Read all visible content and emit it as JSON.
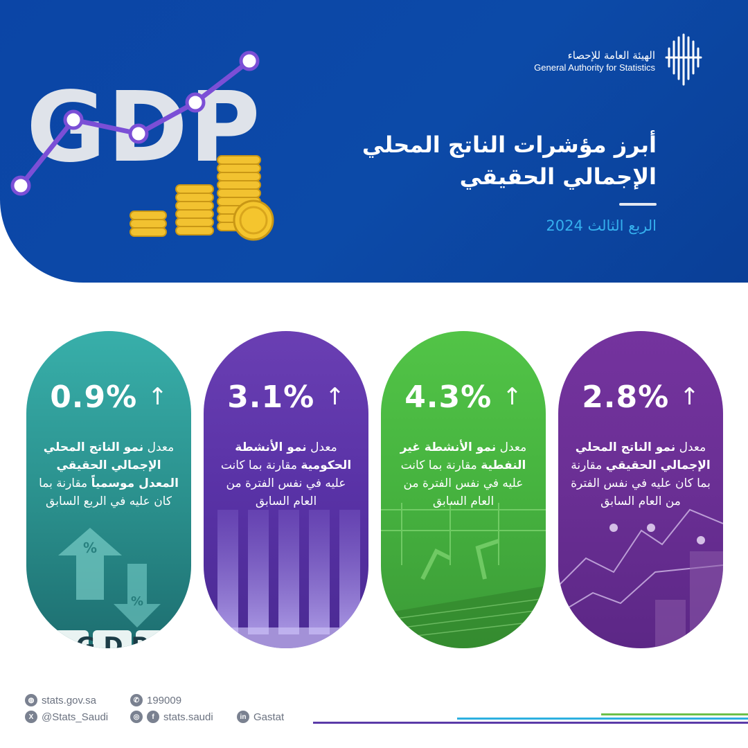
{
  "header": {
    "logo_ar": "الهيئة العامة للإحصاء",
    "logo_en": "General Authority for Statistics",
    "title_line1": "أبرز مؤشرات الناتج المحلي",
    "title_line2": "الإجمالي الحقيقي",
    "subtitle": "الربع الثالث 2024",
    "gdp_text": "GDP"
  },
  "cards": [
    {
      "value": "0.9%",
      "desc_pre": "معدل ",
      "desc_bold1": "نمو الناتج المحلي الإجمالي الحقيقي المعدل موسمياً",
      "desc_post": " مقارنة بما كان عليه في الربع السابق",
      "art_letters": "G D P"
    },
    {
      "value": "3.1%",
      "desc_pre": "معدل ",
      "desc_bold1": "نمو الأنشطة الحكومية",
      "desc_post": " مقارنة بما كانت عليه في نفس الفترة من العام السابق"
    },
    {
      "value": "4.3%",
      "desc_pre": "معدل ",
      "desc_bold1": "نمو الأنشطة غير النفطية",
      "desc_post": " مقارنة بما كانت عليه في نفس الفترة من العام السابق"
    },
    {
      "value": "2.8%",
      "desc_pre": "معدل ",
      "desc_bold1": "نمو الناتج المحلي الإجمالي الحقيقي",
      "desc_post": " مقارنة بما كان عليه في نفس الفترة من العام السابق"
    }
  ],
  "arrow_glyph": "↑",
  "footer": {
    "website": "stats.gov.sa",
    "phone": "199009",
    "twitter": "@Stats_Saudi",
    "social": "stats.saudi",
    "linkedin": "Gastat"
  },
  "colors": {
    "header_blue": "#0c4aa8",
    "card1_teal": "#2a8f8c",
    "card2_purple": "#5932a6",
    "card3_green": "#46b33f",
    "card4_violet": "#6a2f94",
    "subtitle_cyan": "#35b0ee"
  }
}
